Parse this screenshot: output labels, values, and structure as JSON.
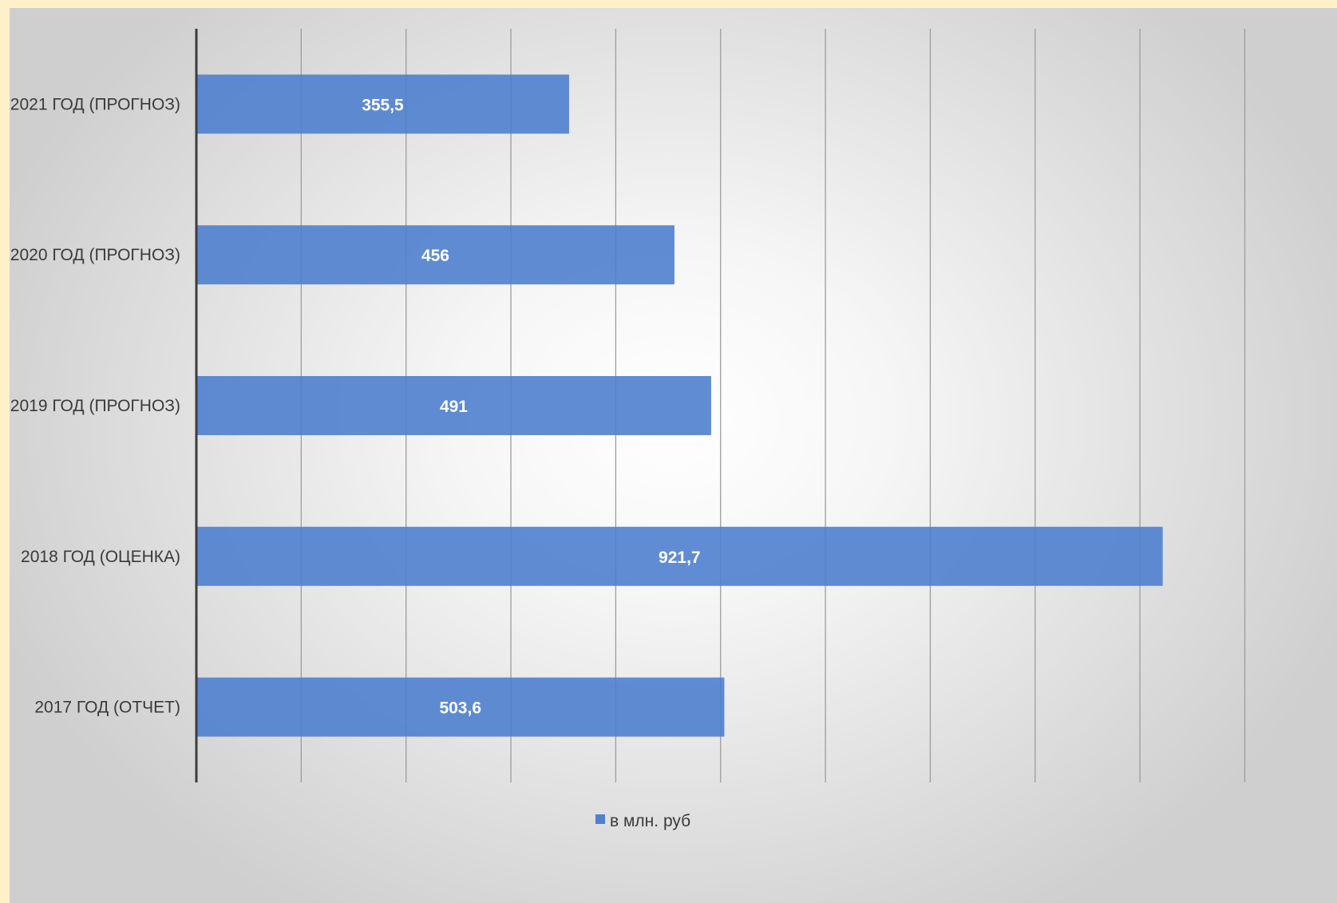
{
  "chart_data": {
    "type": "bar",
    "orientation": "horizontal",
    "categories": [
      "2017 ГОД (ОТЧЕТ)",
      "2018 ГОД (ОЦЕНКА)",
      "2019 ГОД (ПРОГНОЗ)",
      "2020 ГОД (ПРОГНОЗ)",
      "2021 ГОД (ПРОГНОЗ)"
    ],
    "series": [
      {
        "name": "в млн. руб",
        "values": [
          503.6,
          921.7,
          491,
          456,
          355.5
        ],
        "labels": [
          "503,6",
          "921,7",
          "491",
          "456",
          "355,5"
        ],
        "color": "#4f7fcf"
      }
    ],
    "xlim": [
      0,
      1000
    ],
    "grid": true,
    "legend": "bottom"
  }
}
